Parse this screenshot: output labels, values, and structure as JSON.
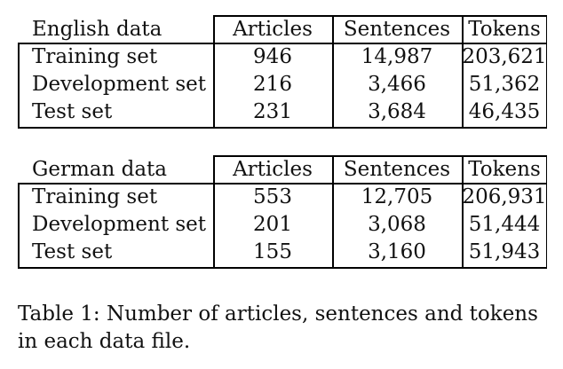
{
  "tables": [
    {
      "header": [
        "English data",
        "Articles",
        "Sentences",
        "Tokens"
      ],
      "rows": [
        [
          "Training set",
          "946",
          "14,987",
          "203,621"
        ],
        [
          "Development set",
          "216",
          "3,466",
          "51,362"
        ],
        [
          "Test set",
          "231",
          "3,684",
          "46,435"
        ]
      ]
    },
    {
      "header": [
        "German data",
        "Articles",
        "Sentences",
        "Tokens"
      ],
      "rows": [
        [
          "Training set",
          "553",
          "12,705",
          "206,931"
        ],
        [
          "Development set",
          "201",
          "3,068",
          "51,444"
        ],
        [
          "Test set",
          "155",
          "3,160",
          "51,943"
        ]
      ]
    }
  ],
  "caption": "Table 1: Number of articles, sentences and tokens in each data file."
}
